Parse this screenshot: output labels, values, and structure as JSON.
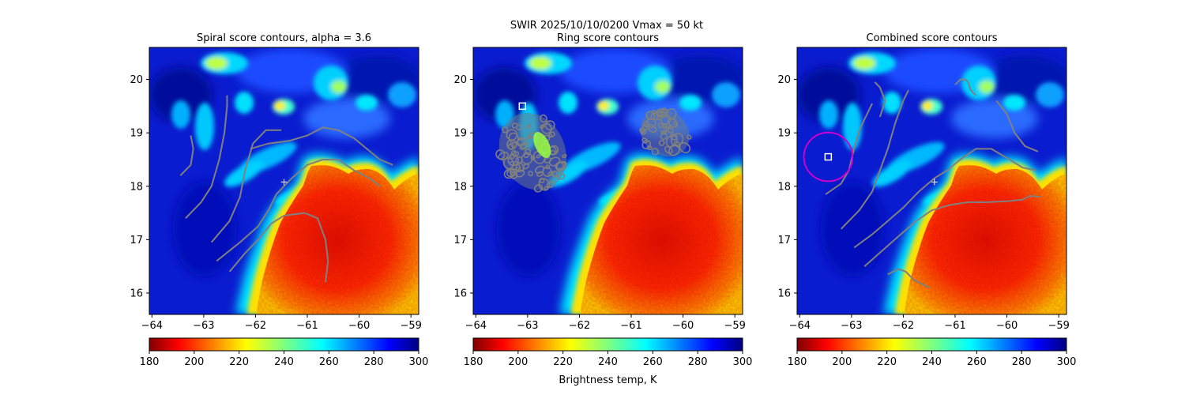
{
  "figure": {
    "suptitle": "SWIR  2025/10/10/0200    Vmax = 50 kt",
    "colorbar_label": "Brightness temp, K"
  },
  "chart_data": [
    {
      "type": "heatmap",
      "title": "Spiral score contours, alpha =  3.6",
      "xlim": [
        -64.05,
        -58.85
      ],
      "ylim": [
        15.6,
        20.6
      ],
      "xticks": [
        -64,
        -63,
        -62,
        -61,
        -60,
        -59
      ],
      "yticks": [
        16,
        17,
        18,
        19,
        20
      ],
      "colorscale": "jet_reversed",
      "vmin": 180,
      "vmax": 300,
      "colorbar_ticks": [
        180,
        200,
        220,
        240,
        260,
        280,
        300
      ],
      "center_marker": {
        "lon": -61.45,
        "lat": 18.08,
        "symbol": "+",
        "color": "#ffffff"
      },
      "contour_color": "#808080",
      "contours": [
        [
          [
            -63.45,
            18.2
          ],
          [
            -63.25,
            18.4
          ],
          [
            -63.2,
            18.7
          ],
          [
            -63.25,
            18.95
          ]
        ],
        [
          [
            -63.35,
            17.4
          ],
          [
            -63.05,
            17.7
          ],
          [
            -62.85,
            18.0
          ],
          [
            -62.7,
            18.5
          ],
          [
            -62.6,
            19.0
          ],
          [
            -62.55,
            19.5
          ],
          [
            -62.55,
            19.7
          ]
        ],
        [
          [
            -62.85,
            16.95
          ],
          [
            -62.5,
            17.35
          ],
          [
            -62.3,
            17.8
          ],
          [
            -62.2,
            18.3
          ],
          [
            -62.05,
            18.8
          ],
          [
            -61.8,
            19.05
          ],
          [
            -61.5,
            19.05
          ]
        ],
        [
          [
            -62.75,
            16.6
          ],
          [
            -62.3,
            16.95
          ],
          [
            -61.95,
            17.25
          ],
          [
            -61.75,
            17.55
          ],
          [
            -61.6,
            17.85
          ],
          [
            -61.3,
            18.15
          ],
          [
            -61.0,
            18.4
          ],
          [
            -60.7,
            18.5
          ],
          [
            -60.4,
            18.5
          ],
          [
            -60.1,
            18.3
          ],
          [
            -59.8,
            18.15
          ],
          [
            -59.6,
            18.0
          ]
        ],
        [
          [
            -62.5,
            16.4
          ],
          [
            -62.2,
            16.75
          ],
          [
            -61.9,
            17.05
          ],
          [
            -61.7,
            17.3
          ],
          [
            -61.45,
            17.45
          ],
          [
            -61.05,
            17.5
          ],
          [
            -60.8,
            17.4
          ],
          [
            -60.65,
            17.0
          ],
          [
            -60.6,
            16.6
          ],
          [
            -60.65,
            16.2
          ]
        ],
        [
          [
            -62.1,
            18.7
          ],
          [
            -61.75,
            18.8
          ],
          [
            -61.35,
            18.85
          ],
          [
            -61.0,
            18.95
          ],
          [
            -60.7,
            19.1
          ],
          [
            -60.4,
            19.05
          ],
          [
            -60.1,
            18.9
          ],
          [
            -59.85,
            18.7
          ],
          [
            -59.6,
            18.5
          ],
          [
            -59.35,
            18.4
          ]
        ]
      ]
    },
    {
      "type": "heatmap",
      "title": "Ring score contours",
      "xlim": [
        -64.05,
        -58.85
      ],
      "ylim": [
        15.6,
        20.6
      ],
      "xticks": [
        -64,
        -63,
        -62,
        -61,
        -60,
        -59
      ],
      "yticks": [
        16,
        17,
        18,
        19,
        20
      ],
      "colorscale": "jet_reversed",
      "vmin": 180,
      "vmax": 300,
      "colorbar_ticks": [
        180,
        200,
        220,
        240,
        260,
        280,
        300
      ],
      "max_marker": {
        "lon": -63.1,
        "lat": 19.5,
        "symbol": "square",
        "color": "#ffffff"
      },
      "contour_color": "#808080",
      "ring_regions": [
        {
          "center": [
            -62.9,
            18.65
          ],
          "radius": [
            0.62,
            1.4
          ],
          "angle": -25
        },
        {
          "center": [
            -60.35,
            19.0
          ],
          "radius": [
            0.5,
            0.78
          ],
          "angle": 40
        }
      ]
    },
    {
      "type": "heatmap",
      "title": "Combined score contours",
      "xlim": [
        -64.05,
        -58.85
      ],
      "ylim": [
        15.6,
        20.6
      ],
      "xticks": [
        -64,
        -63,
        -62,
        -61,
        -60,
        -59
      ],
      "yticks": [
        16,
        17,
        18,
        19,
        20
      ],
      "colorscale": "jet_reversed",
      "vmin": 180,
      "vmax": 300,
      "colorbar_ticks": [
        180,
        200,
        220,
        240,
        260,
        280,
        300
      ],
      "center_marker": {
        "lon": -61.4,
        "lat": 18.08,
        "symbol": "+",
        "color": "#ffffff"
      },
      "max_marker": {
        "lon": -63.45,
        "lat": 18.55,
        "symbol": "square",
        "color": "#ffffff"
      },
      "ring_color": "#cc00cc",
      "ring_radius_deg": 0.47,
      "contour_color": "#808080",
      "contours": [
        [
          [
            -63.5,
            17.85
          ],
          [
            -63.2,
            18.05
          ],
          [
            -63.05,
            18.3
          ],
          [
            -62.95,
            18.7
          ],
          [
            -62.85,
            19.05
          ],
          [
            -62.7,
            19.35
          ],
          [
            -62.6,
            19.55
          ]
        ],
        [
          [
            -63.2,
            17.2
          ],
          [
            -62.85,
            17.55
          ],
          [
            -62.6,
            17.9
          ],
          [
            -62.45,
            18.3
          ],
          [
            -62.3,
            18.7
          ],
          [
            -62.15,
            19.2
          ],
          [
            -62.0,
            19.6
          ],
          [
            -61.9,
            19.8
          ]
        ],
        [
          [
            -62.95,
            16.85
          ],
          [
            -62.6,
            17.1
          ],
          [
            -62.3,
            17.35
          ],
          [
            -62.0,
            17.6
          ],
          [
            -61.7,
            17.9
          ],
          [
            -61.4,
            18.15
          ],
          [
            -61.15,
            18.3
          ],
          [
            -60.9,
            18.5
          ],
          [
            -60.6,
            18.7
          ],
          [
            -60.3,
            18.7
          ],
          [
            -59.95,
            18.5
          ],
          [
            -59.7,
            18.35
          ],
          [
            -59.45,
            18.3
          ]
        ],
        [
          [
            -62.75,
            16.5
          ],
          [
            -62.4,
            16.8
          ],
          [
            -62.05,
            17.1
          ],
          [
            -61.75,
            17.35
          ],
          [
            -61.45,
            17.55
          ],
          [
            -61.1,
            17.65
          ],
          [
            -60.75,
            17.7
          ],
          [
            -60.4,
            17.7
          ],
          [
            -60.0,
            17.72
          ],
          [
            -59.7,
            17.75
          ],
          [
            -59.55,
            17.82
          ],
          [
            -59.35,
            17.8
          ]
        ],
        [
          [
            -62.3,
            16.35
          ],
          [
            -62.1,
            16.45
          ],
          [
            -61.95,
            16.4
          ],
          [
            -61.8,
            16.25
          ],
          [
            -61.6,
            16.15
          ],
          [
            -61.5,
            16.1
          ]
        ],
        [
          [
            -60.2,
            19.6
          ],
          [
            -60.0,
            19.35
          ],
          [
            -59.85,
            19.0
          ],
          [
            -59.65,
            18.75
          ],
          [
            -59.4,
            18.65
          ]
        ],
        [
          [
            -61.0,
            19.9
          ],
          [
            -60.9,
            20.0
          ],
          [
            -60.8,
            20.0
          ],
          [
            -60.75,
            19.95
          ],
          [
            -60.7,
            19.8
          ],
          [
            -60.6,
            19.7
          ]
        ],
        [
          [
            -62.55,
            19.95
          ],
          [
            -62.45,
            19.85
          ],
          [
            -62.35,
            19.6
          ],
          [
            -62.45,
            19.3
          ]
        ]
      ]
    }
  ]
}
